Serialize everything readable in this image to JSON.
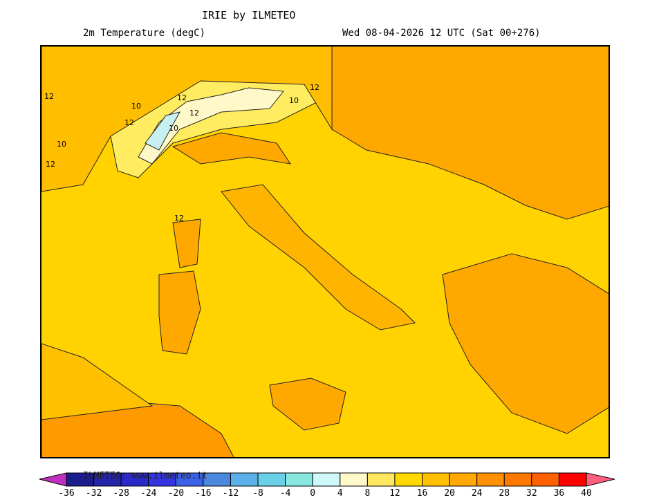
{
  "header": {
    "title": "IRIE by ILMETEO",
    "variable": "2m Temperature (degC)",
    "valid_time": "Wed 08-04-2026 12 UTC (Sat 00+276)"
  },
  "map": {
    "contour_labels": [
      "12",
      "10",
      "12",
      "12",
      "10",
      "12",
      "10",
      "12",
      "10",
      "12",
      "12"
    ],
    "colors": {
      "base": "#ffd200",
      "warm": "#ffb400",
      "warmer": "#ff9a00",
      "cool": "#ffec60",
      "cold": "#fff8c8",
      "coldest": "#c8f0f0"
    }
  },
  "colorbar": {
    "watermark": "ILMETEO: www.ilmeteo.it",
    "ticks": [
      "-36",
      "-32",
      "-28",
      "-24",
      "-20",
      "-16",
      "-12",
      "-8",
      "-4",
      "0",
      "4",
      "8",
      "12",
      "16",
      "20",
      "24",
      "28",
      "32",
      "36",
      "40"
    ],
    "colors": [
      "#1c1c8c",
      "#2424a8",
      "#2a2ac8",
      "#3434e0",
      "#3a62e8",
      "#4a88e0",
      "#5ab0e8",
      "#68d0e8",
      "#88e8e0",
      "#d0f8f8",
      "#fff8c8",
      "#ffe860",
      "#ffd800",
      "#ffc000",
      "#ffa800",
      "#ff9000",
      "#ff7800",
      "#ff6000",
      "#ff0000"
    ],
    "under_color": "#c030c0",
    "over_color": "#ff6080"
  }
}
